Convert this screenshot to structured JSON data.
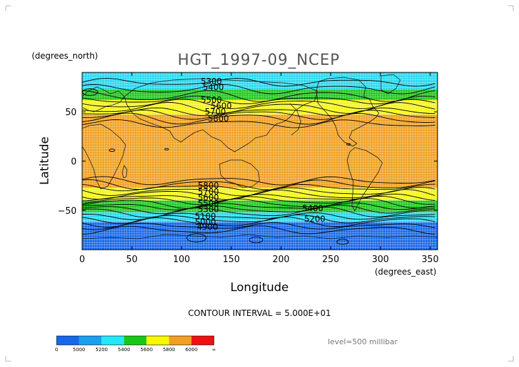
{
  "chart_data": {
    "type": "contour",
    "title": "HGT_1997-09_NCEP",
    "xlabel": "Longitude",
    "ylabel": "Latitude",
    "x_units": "(degrees_east)",
    "y_units": "(degrees_north)",
    "xlim": [
      0,
      357.5
    ],
    "ylim": [
      -90,
      90
    ],
    "x_ticks": [
      0,
      50,
      100,
      150,
      200,
      250,
      300,
      350
    ],
    "y_ticks": [
      -50,
      0,
      50
    ],
    "grid": true,
    "contour_interval_text": "CONTOUR INTERVAL = 5.000E+01",
    "level_text": "level=500 millibar",
    "colorbar": {
      "labels": [
        "0",
        "5000",
        "5200",
        "5400",
        "5600",
        "5800",
        "6000",
        "∞"
      ],
      "colors": [
        "#1668e8",
        "#1aa0f0",
        "#22e8f8",
        "#18c818",
        "#f8f800",
        "#f0a020",
        "#f01010"
      ]
    },
    "bands": [
      {
        "lat_top": 90,
        "lat_bottom": 73,
        "color": "#26d9f0"
      },
      {
        "lat_top": 73,
        "lat_bottom": 62,
        "color": "#1ec81e"
      },
      {
        "lat_top": 62,
        "lat_bottom": 47,
        "color": "#f5f515"
      },
      {
        "lat_top": 47,
        "lat_bottom": -27,
        "color": "#f0a020"
      },
      {
        "lat_top": -27,
        "lat_bottom": -40,
        "color": "#f5f515"
      },
      {
        "lat_top": -40,
        "lat_bottom": -52,
        "color": "#1ec81e"
      },
      {
        "lat_top": -52,
        "lat_bottom": -62,
        "color": "#26d9f0"
      },
      {
        "lat_top": -62,
        "lat_bottom": -90,
        "color": "#1668e8"
      }
    ],
    "contour_labels": [
      {
        "text": "5300",
        "lon": 130,
        "lat": 81
      },
      {
        "text": "5400",
        "lon": 132,
        "lat": 75
      },
      {
        "text": "5500",
        "lon": 130,
        "lat": 62
      },
      {
        "text": "5600",
        "lon": 140,
        "lat": 56
      },
      {
        "text": "5700",
        "lon": 134,
        "lat": 50
      },
      {
        "text": "5800",
        "lon": 137,
        "lat": 43
      },
      {
        "text": "5800",
        "lon": 127,
        "lat": -25
      },
      {
        "text": "5700",
        "lon": 127,
        "lat": -31
      },
      {
        "text": "5600",
        "lon": 127,
        "lat": -37
      },
      {
        "text": "5500",
        "lon": 127,
        "lat": -43
      },
      {
        "text": "5300",
        "lon": 127,
        "lat": -49
      },
      {
        "text": "5400",
        "lon": 232,
        "lat": -48
      },
      {
        "text": "5200",
        "lon": 234,
        "lat": -59
      },
      {
        "text": "5100",
        "lon": 124,
        "lat": -56
      },
      {
        "text": "5000",
        "lon": 124,
        "lat": -62
      },
      {
        "text": "4900",
        "lon": 126,
        "lat": -67
      }
    ]
  }
}
